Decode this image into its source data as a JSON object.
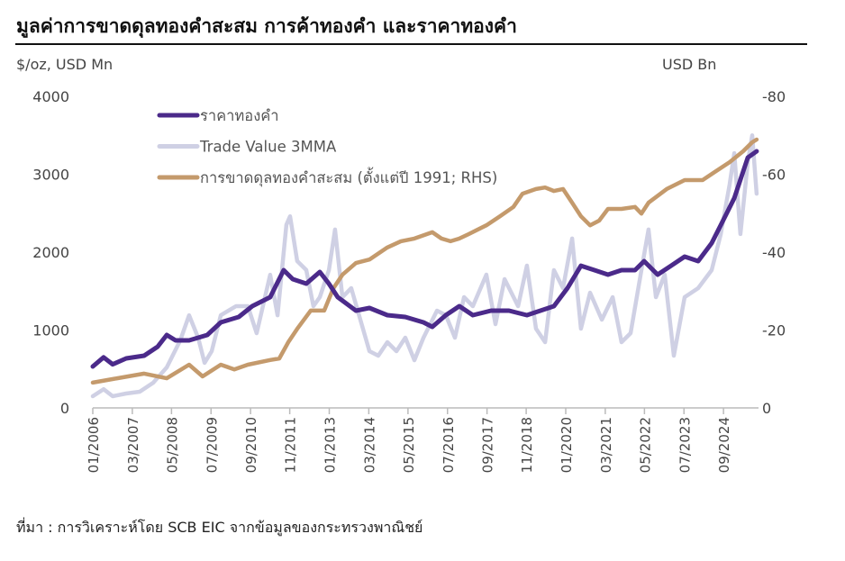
{
  "chart_data": {
    "type": "line",
    "title": "มูลค่าการขาดดุลทองคำสะสม  การค้าทองคำ  และราคาทองคำ",
    "ylabel_left": "$/oz, USD Mn",
    "ylabel_right": "USD Bn",
    "ylim_left": [
      0,
      4000
    ],
    "ylim_right": [
      0,
      -80
    ],
    "yticks_left": [
      "0",
      "1000",
      "2000",
      "3000",
      "4000"
    ],
    "yticks_right": [
      "0",
      "-20",
      "-40",
      "-60",
      "-80"
    ],
    "yticks_left_values": [
      0,
      1000,
      2000,
      3000,
      4000
    ],
    "yticks_right_values": [
      0,
      -20,
      -40,
      -60,
      -80
    ],
    "xlim": [
      2006.0,
      2025.7
    ],
    "xticks": [
      {
        "label": "01/2006",
        "x": 2006.0
      },
      {
        "label": "03/2007",
        "x": 2007.17
      },
      {
        "label": "05/2008",
        "x": 2008.33
      },
      {
        "label": "07/2009",
        "x": 2009.5
      },
      {
        "label": "09/2010",
        "x": 2010.67
      },
      {
        "label": "11/2011",
        "x": 2011.83
      },
      {
        "label": "01/2013",
        "x": 2013.0
      },
      {
        "label": "03/2014",
        "x": 2014.17
      },
      {
        "label": "05/2015",
        "x": 2015.33
      },
      {
        "label": "07/2016",
        "x": 2016.5
      },
      {
        "label": "09/2017",
        "x": 2017.67
      },
      {
        "label": "11/2018",
        "x": 2018.83
      },
      {
        "label": "01/2020",
        "x": 2020.0
      },
      {
        "label": "03/2021",
        "x": 2021.17
      },
      {
        "label": "05/2022",
        "x": 2022.33
      },
      {
        "label": "07/2023",
        "x": 2023.5
      },
      {
        "label": "09/2024",
        "x": 2024.67
      }
    ],
    "legend_position": "top-left",
    "grid": false,
    "series": [
      {
        "name": "ราคาทองคำ",
        "axis": "left",
        "color": "#4b2a8a",
        "points": [
          [
            2006.0,
            532
          ],
          [
            2006.32,
            650
          ],
          [
            2006.59,
            560
          ],
          [
            2006.99,
            636
          ],
          [
            2007.52,
            670
          ],
          [
            2007.92,
            786
          ],
          [
            2008.19,
            936
          ],
          [
            2008.45,
            867
          ],
          [
            2008.85,
            867
          ],
          [
            2009.39,
            936
          ],
          [
            2009.79,
            1098
          ],
          [
            2010.32,
            1168
          ],
          [
            2010.72,
            1306
          ],
          [
            2011.25,
            1422
          ],
          [
            2011.65,
            1769
          ],
          [
            2011.92,
            1653
          ],
          [
            2012.32,
            1595
          ],
          [
            2012.72,
            1746
          ],
          [
            2012.99,
            1595
          ],
          [
            2013.25,
            1422
          ],
          [
            2013.79,
            1249
          ],
          [
            2014.19,
            1283
          ],
          [
            2014.72,
            1191
          ],
          [
            2015.25,
            1168
          ],
          [
            2015.79,
            1098
          ],
          [
            2016.05,
            1040
          ],
          [
            2016.45,
            1191
          ],
          [
            2016.85,
            1306
          ],
          [
            2017.25,
            1191
          ],
          [
            2017.79,
            1249
          ],
          [
            2018.32,
            1249
          ],
          [
            2018.85,
            1191
          ],
          [
            2019.25,
            1249
          ],
          [
            2019.65,
            1306
          ],
          [
            2020.05,
            1538
          ],
          [
            2020.45,
            1826
          ],
          [
            2020.85,
            1769
          ],
          [
            2021.25,
            1711
          ],
          [
            2021.65,
            1769
          ],
          [
            2022.05,
            1769
          ],
          [
            2022.32,
            1884
          ],
          [
            2022.72,
            1711
          ],
          [
            2023.12,
            1826
          ],
          [
            2023.52,
            1942
          ],
          [
            2023.92,
            1884
          ],
          [
            2024.32,
            2116
          ],
          [
            2024.59,
            2347
          ],
          [
            2024.99,
            2694
          ],
          [
            2025.39,
            3214
          ],
          [
            2025.65,
            3295
          ]
        ]
      },
      {
        "name": "Trade Value 3MMA",
        "axis": "left",
        "color": "#cfd0e4",
        "points": [
          [
            2006.0,
            150
          ],
          [
            2006.32,
            240
          ],
          [
            2006.59,
            150
          ],
          [
            2006.99,
            185
          ],
          [
            2007.39,
            208
          ],
          [
            2007.79,
            324
          ],
          [
            2008.19,
            520
          ],
          [
            2008.59,
            867
          ],
          [
            2008.85,
            1190
          ],
          [
            2009.12,
            900
          ],
          [
            2009.31,
            578
          ],
          [
            2009.52,
            728
          ],
          [
            2009.79,
            1190
          ],
          [
            2010.24,
            1306
          ],
          [
            2010.59,
            1306
          ],
          [
            2010.85,
            960
          ],
          [
            2011.25,
            1710
          ],
          [
            2011.47,
            1190
          ],
          [
            2011.73,
            2350
          ],
          [
            2011.84,
            2460
          ],
          [
            2012.05,
            1885
          ],
          [
            2012.32,
            1770
          ],
          [
            2012.53,
            1306
          ],
          [
            2012.72,
            1422
          ],
          [
            2012.99,
            1769
          ],
          [
            2013.17,
            2290
          ],
          [
            2013.39,
            1422
          ],
          [
            2013.65,
            1538
          ],
          [
            2013.92,
            1133
          ],
          [
            2014.19,
            728
          ],
          [
            2014.45,
            670
          ],
          [
            2014.72,
            844
          ],
          [
            2014.99,
            728
          ],
          [
            2015.25,
            902
          ],
          [
            2015.52,
            613
          ],
          [
            2015.79,
            902
          ],
          [
            2016.19,
            1249
          ],
          [
            2016.45,
            1191
          ],
          [
            2016.72,
            902
          ],
          [
            2016.99,
            1422
          ],
          [
            2017.25,
            1306
          ],
          [
            2017.65,
            1711
          ],
          [
            2017.92,
            1075
          ],
          [
            2018.19,
            1653
          ],
          [
            2018.59,
            1306
          ],
          [
            2018.85,
            1827
          ],
          [
            2019.12,
            1017
          ],
          [
            2019.39,
            844
          ],
          [
            2019.65,
            1769
          ],
          [
            2019.92,
            1538
          ],
          [
            2020.19,
            2174
          ],
          [
            2020.45,
            1017
          ],
          [
            2020.72,
            1480
          ],
          [
            2021.07,
            1133
          ],
          [
            2021.39,
            1422
          ],
          [
            2021.65,
            844
          ],
          [
            2021.92,
            960
          ],
          [
            2022.24,
            1769
          ],
          [
            2022.45,
            2290
          ],
          [
            2022.67,
            1422
          ],
          [
            2022.93,
            1711
          ],
          [
            2023.2,
            671
          ],
          [
            2023.52,
            1422
          ],
          [
            2023.92,
            1538
          ],
          [
            2024.32,
            1769
          ],
          [
            2024.59,
            2232
          ],
          [
            2024.85,
            2867
          ],
          [
            2024.99,
            3270
          ],
          [
            2025.17,
            2232
          ],
          [
            2025.39,
            3156
          ],
          [
            2025.52,
            3500
          ],
          [
            2025.65,
            2750
          ]
        ]
      },
      {
        "name": "การขาดดุลทองคำสะสม (ตั้งแต่ปี 1991; RHS)",
        "axis": "right",
        "color": "#c49a6c",
        "points": [
          [
            2006.0,
            -6.5
          ],
          [
            2006.72,
            -7.6
          ],
          [
            2007.52,
            -8.8
          ],
          [
            2008.19,
            -7.6
          ],
          [
            2008.85,
            -11.1
          ],
          [
            2009.25,
            -8.1
          ],
          [
            2009.79,
            -11.1
          ],
          [
            2010.19,
            -9.9
          ],
          [
            2010.59,
            -11.1
          ],
          [
            2011.25,
            -12.3
          ],
          [
            2011.52,
            -12.7
          ],
          [
            2011.79,
            -16.9
          ],
          [
            2012.05,
            -20.3
          ],
          [
            2012.45,
            -25.0
          ],
          [
            2012.85,
            -25.0
          ],
          [
            2013.12,
            -30.7
          ],
          [
            2013.39,
            -34.2
          ],
          [
            2013.79,
            -37.2
          ],
          [
            2014.19,
            -38.1
          ],
          [
            2014.72,
            -41.2
          ],
          [
            2015.12,
            -42.8
          ],
          [
            2015.52,
            -43.5
          ],
          [
            2016.05,
            -45.1
          ],
          [
            2016.32,
            -43.5
          ],
          [
            2016.59,
            -42.8
          ],
          [
            2016.85,
            -43.5
          ],
          [
            2017.12,
            -44.6
          ],
          [
            2017.65,
            -46.9
          ],
          [
            2018.05,
            -49.2
          ],
          [
            2018.45,
            -51.6
          ],
          [
            2018.72,
            -55.0
          ],
          [
            2019.12,
            -56.2
          ],
          [
            2019.39,
            -56.6
          ],
          [
            2019.65,
            -55.7
          ],
          [
            2019.92,
            -56.2
          ],
          [
            2020.19,
            -52.7
          ],
          [
            2020.45,
            -49.2
          ],
          [
            2020.72,
            -46.9
          ],
          [
            2020.99,
            -48.1
          ],
          [
            2021.25,
            -51.1
          ],
          [
            2021.65,
            -51.1
          ],
          [
            2022.05,
            -51.6
          ],
          [
            2022.24,
            -49.9
          ],
          [
            2022.45,
            -52.7
          ],
          [
            2022.99,
            -56.2
          ],
          [
            2023.52,
            -58.5
          ],
          [
            2024.05,
            -58.5
          ],
          [
            2024.45,
            -60.8
          ],
          [
            2024.85,
            -63.1
          ],
          [
            2025.25,
            -65.9
          ],
          [
            2025.52,
            -68.2
          ],
          [
            2025.65,
            -68.9
          ]
        ]
      }
    ]
  },
  "source": "ที่มา : การวิเคราะห์โดย  SCB EIC จากข้อมูลของกระทรวงพาณิชย์"
}
